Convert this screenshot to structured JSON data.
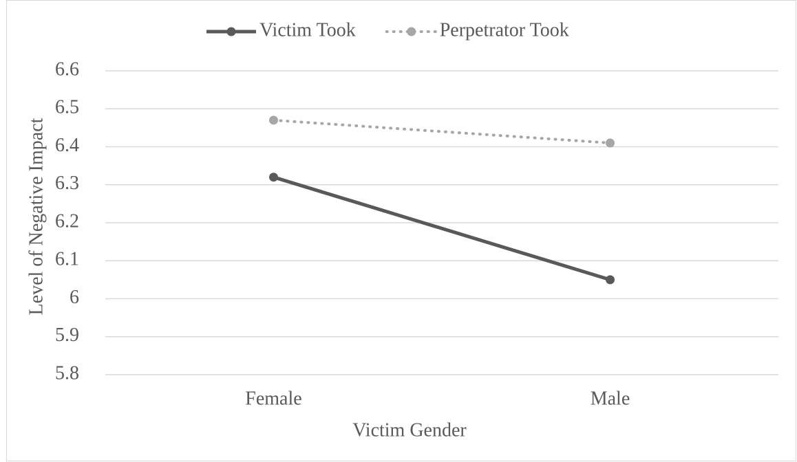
{
  "chart_data": {
    "type": "line",
    "x_label": "Victim Gender",
    "y_label": "Level of Negative Impact",
    "categories": [
      "Female",
      "Male"
    ],
    "series": [
      {
        "name": "Victim Took",
        "color": "#595959",
        "style": "solid",
        "values": [
          6.32,
          6.05
        ]
      },
      {
        "name": "Perpetrator Took",
        "color": "#a6a6a6",
        "style": "dotted",
        "values": [
          6.47,
          6.41
        ]
      }
    ],
    "ylim": [
      5.8,
      6.6
    ],
    "yticks": [
      5.8,
      5.9,
      6,
      6.1,
      6.2,
      6.3,
      6.4,
      6.5,
      6.6
    ],
    "grid": true,
    "legend": "top"
  }
}
